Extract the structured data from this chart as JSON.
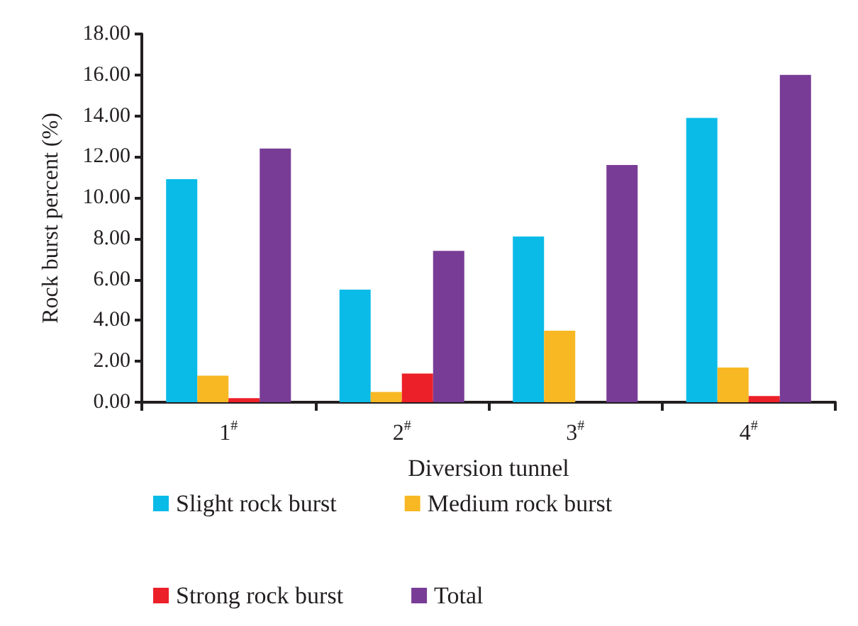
{
  "chart_data": {
    "type": "bar",
    "xlabel": "Diversion tunnel",
    "ylabel": "Rock burst percent (%)",
    "categories": [
      "1$^{#}$",
      "2$^{#}$",
      "3$^{#}$",
      "4$^{#}$"
    ],
    "series": [
      {
        "name": "Slight rock burst",
        "color": "#0abbe8",
        "values": [
          10.9,
          5.5,
          8.1,
          13.9
        ]
      },
      {
        "name": "Medium rock burst",
        "color": "#f8b824",
        "values": [
          1.3,
          0.5,
          3.5,
          1.7
        ]
      },
      {
        "name": "Strong rock burst",
        "color": "#ec2028",
        "values": [
          0.2,
          1.4,
          0,
          0.3
        ]
      },
      {
        "name": "Total",
        "color": "#783c96",
        "values": [
          12.4,
          7.4,
          11.6,
          16.0
        ]
      }
    ],
    "ylim": [
      0,
      18
    ],
    "yticks": [
      {
        "value": 0,
        "label": "0.00"
      },
      {
        "value": 2,
        "label": "2.00"
      },
      {
        "value": 4,
        "label": "4.00"
      },
      {
        "value": 6,
        "label": "6.00"
      },
      {
        "value": 8,
        "label": "8.00"
      },
      {
        "value": 10,
        "label": "10.00"
      },
      {
        "value": 12,
        "label": "12.00"
      },
      {
        "value": 14,
        "label": "14.00"
      },
      {
        "value": 16,
        "label": "16.00"
      },
      {
        "value": 18,
        "label": "18.00"
      }
    ],
    "grid": false,
    "legend": "bottom"
  }
}
